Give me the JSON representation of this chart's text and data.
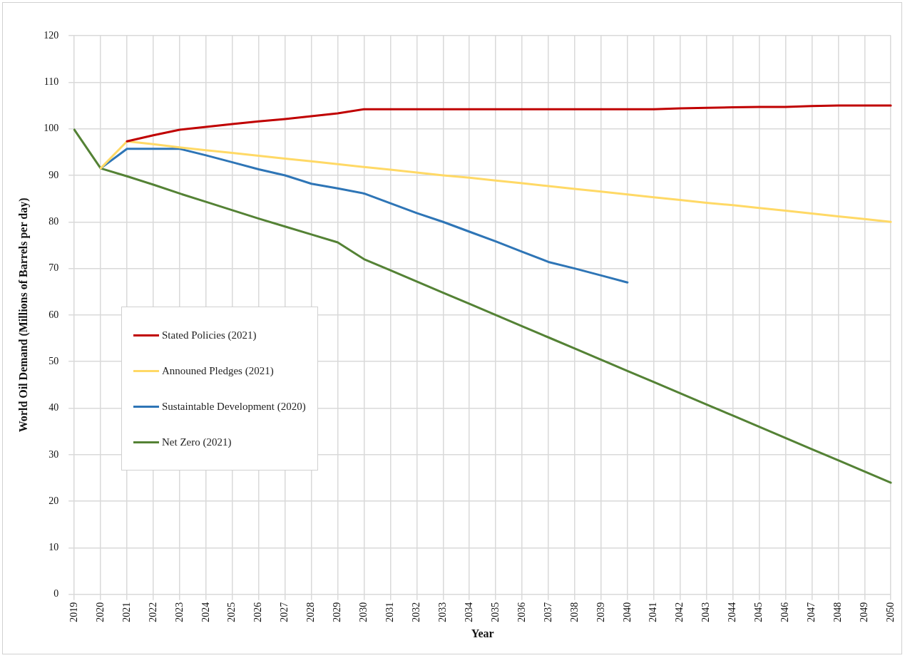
{
  "chart_data": {
    "type": "line",
    "xlabel": "Year",
    "ylabel": "World Oil Demand (Millions of Barrels per day)",
    "categories": [
      "2019",
      "2020",
      "2021",
      "2022",
      "2023",
      "2024",
      "2025",
      "2026",
      "2027",
      "2028",
      "2029",
      "2030",
      "2031",
      "2032",
      "2033",
      "2034",
      "2035",
      "2036",
      "2037",
      "2038",
      "2039",
      "2040",
      "2041",
      "2042",
      "2043",
      "2044",
      "2045",
      "2046",
      "2047",
      "2048",
      "2049",
      "2050"
    ],
    "ylim": [
      0,
      120
    ],
    "yticks": [
      0,
      10,
      20,
      30,
      40,
      50,
      60,
      70,
      80,
      90,
      100,
      110,
      120
    ],
    "grid": true,
    "legend": "left",
    "marker": "none",
    "line_style": "solid",
    "series": [
      {
        "name": "Stated Policies (2021)",
        "color": "#c00000",
        "values": [
          null,
          null,
          97.3,
          98.6,
          99.8,
          100.4,
          101.0,
          101.6,
          102.1,
          102.7,
          103.3,
          104.2,
          104.2,
          104.2,
          104.2,
          104.2,
          104.2,
          104.2,
          104.2,
          104.2,
          104.2,
          104.2,
          104.2,
          104.4,
          104.5,
          104.6,
          104.7,
          104.7,
          104.9,
          105.0,
          105.0,
          105.0
        ]
      },
      {
        "name": "Announed Pledges (2021)",
        "color": "#ffd966",
        "values": [
          null,
          91.5,
          97.3,
          96.7,
          96.0,
          95.4,
          94.8,
          94.2,
          93.6,
          93.0,
          92.4,
          91.8,
          91.2,
          90.6,
          90.0,
          89.5,
          88.9,
          88.3,
          87.7,
          87.1,
          86.5,
          85.9,
          85.3,
          84.7,
          84.1,
          83.6,
          83.0,
          82.4,
          81.8,
          81.2,
          80.6,
          80.0
        ]
      },
      {
        "name": "Sustaintable Development (2020)",
        "color": "#2e75b6",
        "values": [
          null,
          91.5,
          95.7,
          95.7,
          95.7,
          94.3,
          92.8,
          91.3,
          90.0,
          88.2,
          87.2,
          86.1,
          84.0,
          81.9,
          80.0,
          77.9,
          75.8,
          73.6,
          71.4,
          70.0,
          68.5,
          67.0,
          null,
          null,
          null,
          null,
          null,
          null,
          null,
          null,
          null,
          null
        ]
      },
      {
        "name": "Net Zero (2021)",
        "color": "#548235",
        "values": [
          99.8,
          91.5,
          89.8,
          88.0,
          86.1,
          84.3,
          82.5,
          80.7,
          79.0,
          77.3,
          75.6,
          72.0,
          69.6,
          67.2,
          64.8,
          62.4,
          60.0,
          57.6,
          55.2,
          52.8,
          50.4,
          48.0,
          45.6,
          43.2,
          40.8,
          38.4,
          36.0,
          33.6,
          31.2,
          28.8,
          26.4,
          24.0
        ]
      }
    ]
  }
}
